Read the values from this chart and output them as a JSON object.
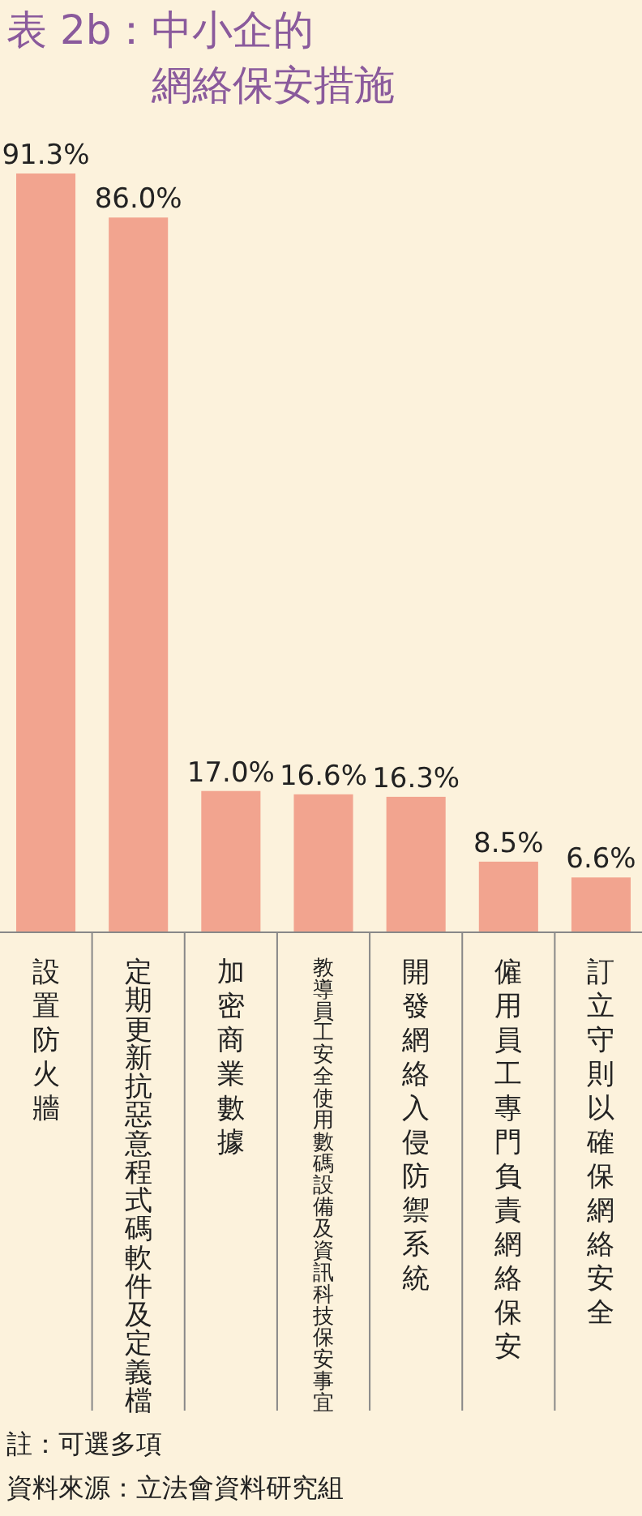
{
  "chart_data": {
    "type": "bar",
    "title": "表 2b：中小企的網絡保安措施",
    "categories": [
      "設置防火牆",
      "定期更新抗惡意程式碼軟件及定義檔",
      "加密商業數據",
      "教導員工安全使用數碼設備及資訊科技保安事宜",
      "開發網絡入侵防禦系統",
      "僱用員工專門負責網絡保安",
      "訂立守則以確保網絡安全"
    ],
    "values": [
      91.3,
      86.0,
      17.0,
      16.6,
      16.3,
      8.5,
      6.6
    ],
    "value_labels": [
      "91.3%",
      "86.0%",
      "17.0%",
      "16.6%",
      "16.3%",
      "8.5%",
      "6.6%"
    ],
    "color": "#f2a48f",
    "annotations": [
      "註：可選多項",
      "資料來源：立法會資料研究組"
    ]
  }
}
